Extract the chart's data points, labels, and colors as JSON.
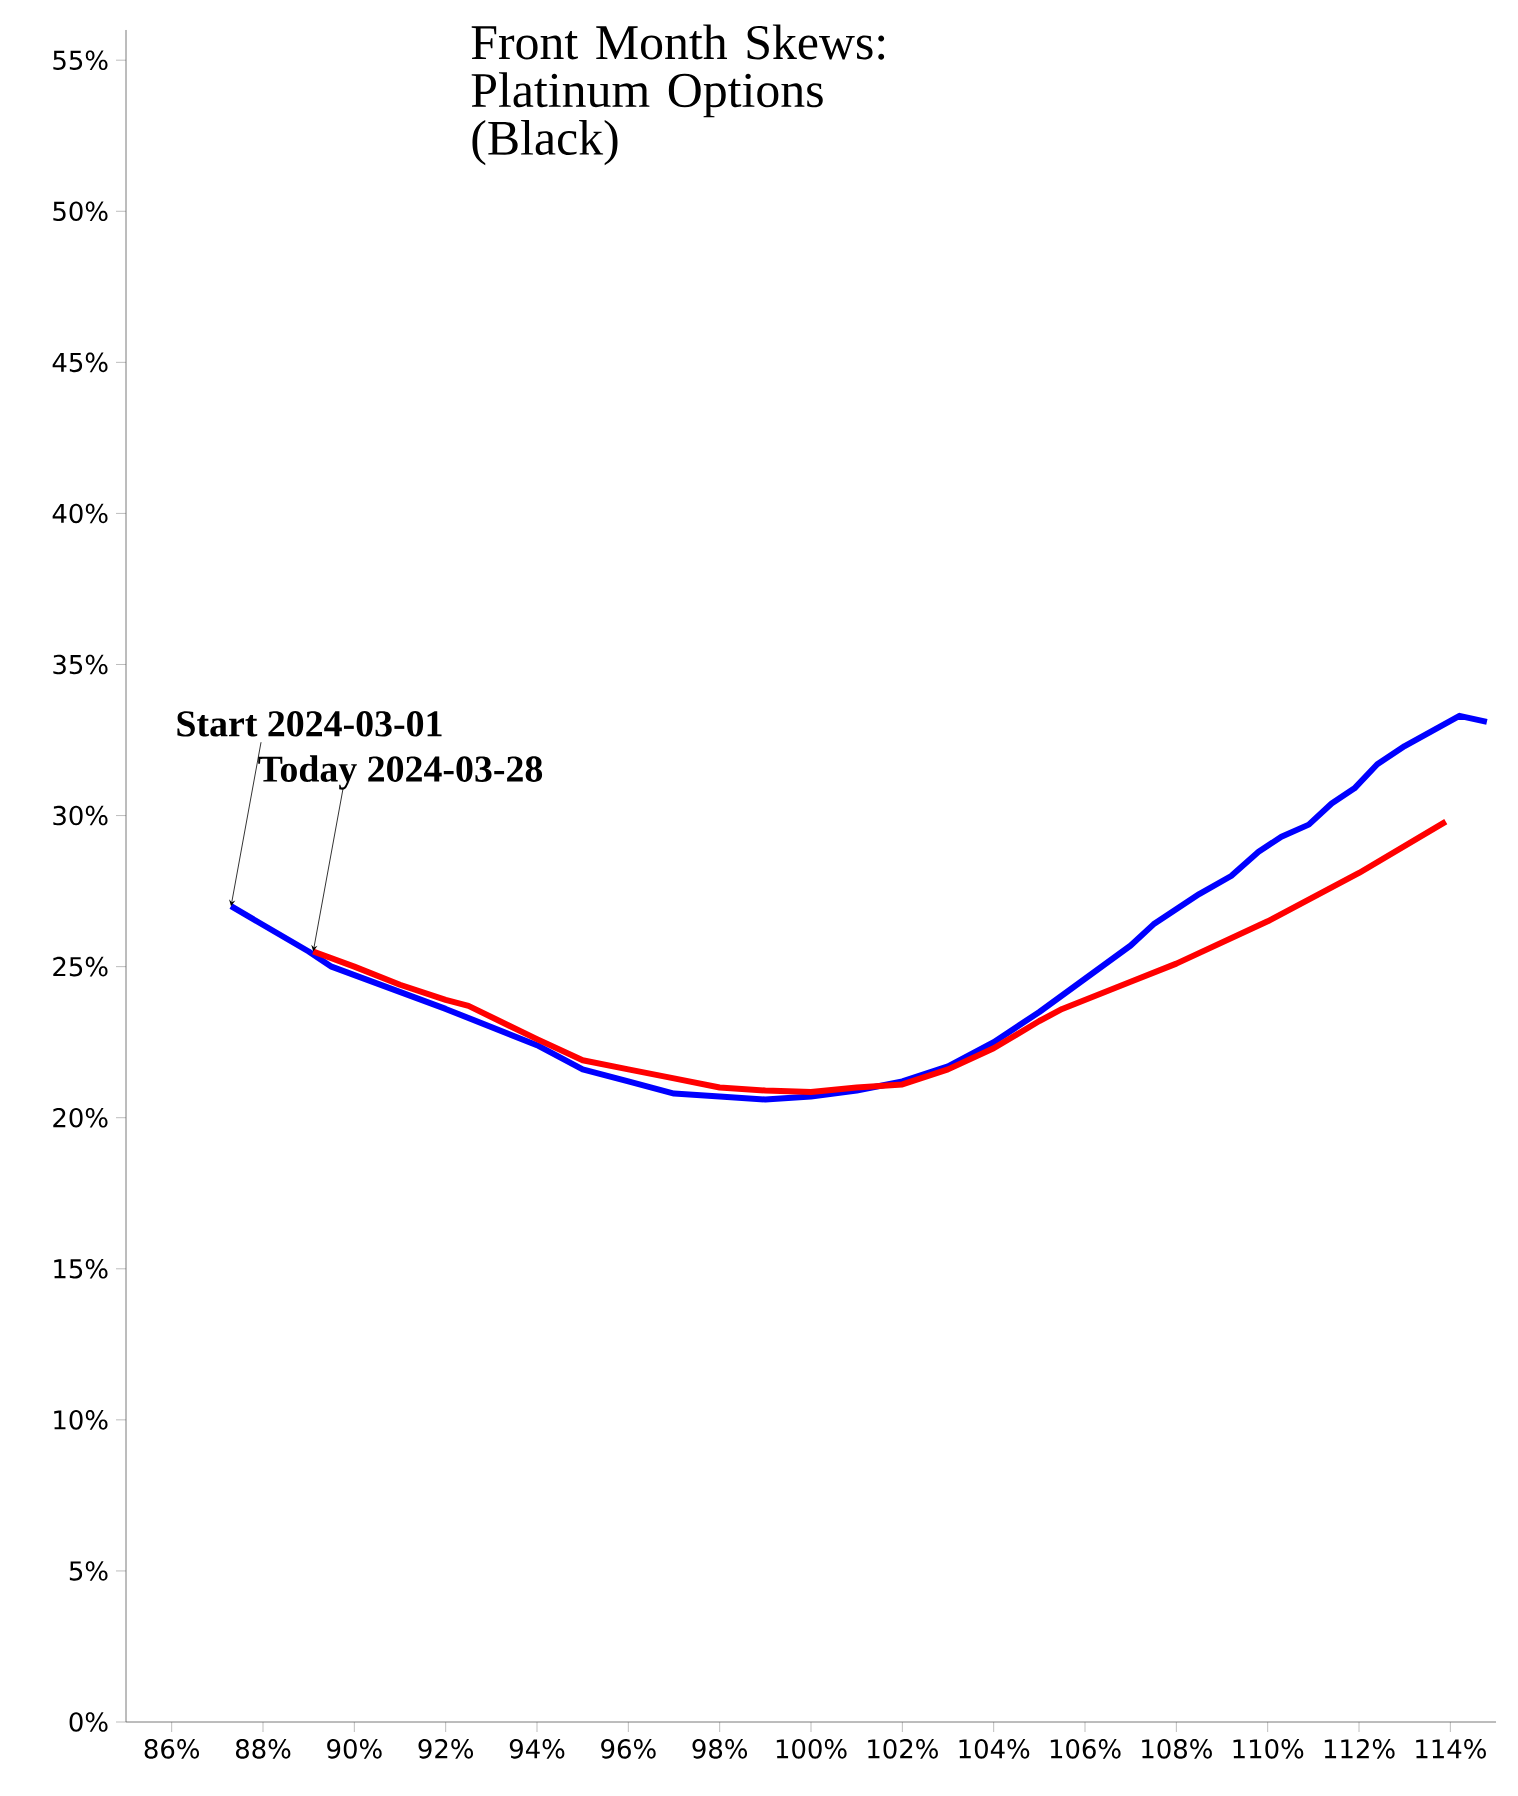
{
  "chart_data": {
    "type": "line",
    "title": "Front Month Skews: Platinum Options (Black)",
    "xlim": [
      85,
      115
    ],
    "ylim": [
      0,
      56
    ],
    "xticks": [
      {
        "value": 86,
        "label": "86%"
      },
      {
        "value": 88,
        "label": "88%"
      },
      {
        "value": 90,
        "label": "90%"
      },
      {
        "value": 92,
        "label": "92%"
      },
      {
        "value": 94,
        "label": "94%"
      },
      {
        "value": 96,
        "label": "96%"
      },
      {
        "value": 98,
        "label": "98%"
      },
      {
        "value": 100,
        "label": "100%"
      },
      {
        "value": 102,
        "label": "102%"
      },
      {
        "value": 104,
        "label": "104%"
      },
      {
        "value": 106,
        "label": "106%"
      },
      {
        "value": 108,
        "label": "108%"
      },
      {
        "value": 110,
        "label": "110%"
      },
      {
        "value": 112,
        "label": "112%"
      },
      {
        "value": 114,
        "label": "114%"
      }
    ],
    "yticks": [
      {
        "value": 0,
        "label": "0%"
      },
      {
        "value": 5,
        "label": "5%"
      },
      {
        "value": 10,
        "label": "10%"
      },
      {
        "value": 15,
        "label": "15%"
      },
      {
        "value": 20,
        "label": "20%"
      },
      {
        "value": 25,
        "label": "25%"
      },
      {
        "value": 30,
        "label": "30%"
      },
      {
        "value": 35,
        "label": "35%"
      },
      {
        "value": 40,
        "label": "40%"
      },
      {
        "value": 45,
        "label": "45%"
      },
      {
        "value": 50,
        "label": "50%"
      },
      {
        "value": 55,
        "label": "55%"
      }
    ],
    "series": [
      {
        "color": "#0000ff",
        "x": [
          87.3,
          89.0,
          89.5,
          92.0,
          94.0,
          95.0,
          96.0,
          97.0,
          98.0,
          99.0,
          100.0,
          101.0,
          102.0,
          103.0,
          104.0,
          105.0,
          106.0,
          107.0,
          107.5,
          108.0,
          108.5,
          109.2,
          109.8,
          110.3,
          110.9,
          111.4,
          111.9,
          112.4,
          113.0,
          113.6,
          114.2,
          114.8
        ],
        "values": [
          27.0,
          25.5,
          25.0,
          23.6,
          22.4,
          21.6,
          21.2,
          20.8,
          20.7,
          20.6,
          20.7,
          20.9,
          21.2,
          21.7,
          22.5,
          23.5,
          24.6,
          25.7,
          26.4,
          26.9,
          27.4,
          28.0,
          28.8,
          29.3,
          29.7,
          30.4,
          30.9,
          31.7,
          32.3,
          32.8,
          33.3,
          33.1
        ]
      },
      {
        "color": "#ff0000",
        "x": [
          89.1,
          90.0,
          91.0,
          92.0,
          92.5,
          94.0,
          95.0,
          96.0,
          97.0,
          98.0,
          99.0,
          100.0,
          101.0,
          102.0,
          103.0,
          104.0,
          105.0,
          105.5,
          107.0,
          108.0,
          110.0,
          112.0,
          113.9
        ],
        "values": [
          25.5,
          25.0,
          24.4,
          23.9,
          23.7,
          22.6,
          21.9,
          21.6,
          21.3,
          21.0,
          20.9,
          20.85,
          21.0,
          21.1,
          21.6,
          22.3,
          23.2,
          23.6,
          24.5,
          25.1,
          26.5,
          28.1,
          29.8
        ]
      }
    ],
    "annotations": [
      {
        "text": "Start 2024-03-01",
        "x": 87.3,
        "y": 27.0
      },
      {
        "text": "Today 2024-03-28",
        "x": 89.1,
        "y": 25.5
      }
    ]
  }
}
